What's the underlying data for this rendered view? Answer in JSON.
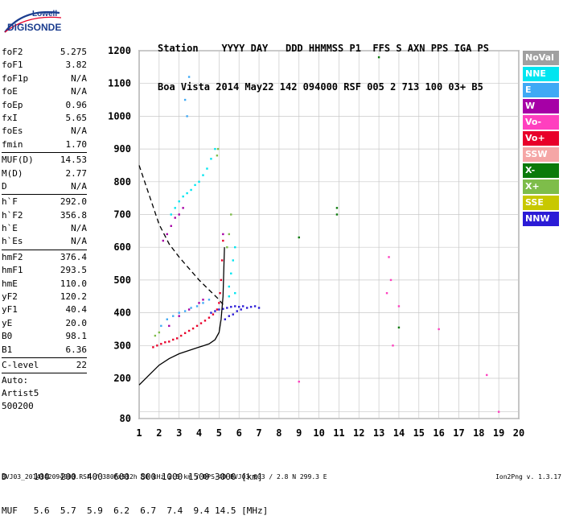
{
  "logo": {
    "line1": "Lowell",
    "line2": "DIGISONDE"
  },
  "header": {
    "row1": [
      "Station",
      "YYYY DAY",
      "DDD",
      "HHMMSS",
      "P1",
      "FFS",
      "S",
      "AXN",
      "PPS",
      "IGA",
      "PS"
    ],
    "row2": [
      "Boa Vista",
      "2014 May22",
      "142",
      "094000",
      "RSF",
      "005",
      "2",
      "713",
      "100",
      "03+",
      "B5"
    ]
  },
  "params": {
    "group1": [
      {
        "name": "foF2",
        "value": "5.275"
      },
      {
        "name": "foF1",
        "value": "3.82"
      },
      {
        "name": "foF1p",
        "value": "N/A"
      },
      {
        "name": "foE",
        "value": "N/A"
      },
      {
        "name": "foEp",
        "value": "0.96"
      },
      {
        "name": "fxI",
        "value": "5.65"
      },
      {
        "name": "foEs",
        "value": "N/A"
      },
      {
        "name": "fmin",
        "value": "1.70"
      }
    ],
    "group2": [
      {
        "name": "MUF(D)",
        "value": "14.53"
      },
      {
        "name": "M(D)",
        "value": "2.77"
      },
      {
        "name": "D",
        "value": "N/A"
      }
    ],
    "group3": [
      {
        "name": "h`F",
        "value": "292.0"
      },
      {
        "name": "h`F2",
        "value": "356.8"
      },
      {
        "name": "h`E",
        "value": "N/A"
      },
      {
        "name": "h`Es",
        "value": "N/A"
      }
    ],
    "group4": [
      {
        "name": "hmF2",
        "value": "376.4"
      },
      {
        "name": "hmF1",
        "value": "293.5"
      },
      {
        "name": "hmE",
        "value": "110.0"
      },
      {
        "name": "yF2",
        "value": "120.2"
      },
      {
        "name": "yF1",
        "value": "40.4"
      },
      {
        "name": "yE",
        "value": "20.0"
      },
      {
        "name": "B0",
        "value": "98.1"
      },
      {
        "name": "B1",
        "value": "6.36"
      }
    ],
    "clevel": {
      "name": "C-level",
      "value": "22"
    },
    "auto_label": "Auto:",
    "artist": "Artist5",
    "code": "500200"
  },
  "legend": [
    {
      "label": "NoVal",
      "color": "#a0a0a0"
    },
    {
      "label": "NNE",
      "color": "#00e5f0"
    },
    {
      "label": "E",
      "color": "#3fa9f5"
    },
    {
      "label": "W",
      "color": "#a600a6"
    },
    {
      "label": "Vo-",
      "color": "#ff3fbf"
    },
    {
      "label": "Vo+",
      "color": "#e8002a"
    },
    {
      "label": "SSW",
      "color": "#f5a6a6"
    },
    {
      "label": "X-",
      "color": "#0a7a0a"
    },
    {
      "label": "X+",
      "color": "#7ebd4a"
    },
    {
      "label": "SSE",
      "color": "#c8c800"
    },
    {
      "label": "NNW",
      "color": "#2b1bd6"
    }
  ],
  "muf_table": {
    "row1": [
      "D",
      "100",
      "200",
      "400",
      "600",
      "800",
      "1000",
      "1500",
      "3000",
      "[km]"
    ],
    "row2": [
      "MUF",
      "5.6",
      "5.7",
      "5.9",
      "6.2",
      "6.7",
      "7.4",
      "9.4",
      "14.5",
      "[MHz]"
    ]
  },
  "footer": {
    "left": "BVJ03_2014142094000.RSF / 380fx512h 50 kHz 2.5 km / DPS-4D BVJ03 003 / 2.8 N 299.3 E",
    "right": "Ion2Png v. 1.3.17"
  },
  "chart_data": {
    "type": "scatter",
    "title": "",
    "xlabel": "",
    "ylabel": "",
    "xlim": [
      1,
      20
    ],
    "ylim": [
      80,
      1200
    ],
    "x_ticks": [
      1,
      2,
      3,
      4,
      5,
      6,
      7,
      8,
      9,
      10,
      11,
      12,
      13,
      14,
      15,
      16,
      17,
      18,
      19,
      20
    ],
    "y_ticks": [
      80,
      100,
      200,
      300,
      400,
      500,
      600,
      700,
      800,
      900,
      1000,
      1100,
      1200
    ],
    "y_tick_labels": [
      "80",
      "",
      "200",
      "300",
      "400",
      "500",
      "600",
      "700",
      "800",
      "900",
      "1000",
      "1100",
      "1200"
    ],
    "grid": true,
    "series": [
      {
        "color": "#e8002a",
        "points": [
          [
            1.7,
            295
          ],
          [
            1.9,
            300
          ],
          [
            2.1,
            305
          ],
          [
            2.3,
            310
          ],
          [
            2.5,
            312
          ],
          [
            2.7,
            318
          ],
          [
            2.9,
            322
          ],
          [
            3.1,
            330
          ],
          [
            3.3,
            338
          ],
          [
            3.5,
            345
          ],
          [
            3.7,
            352
          ],
          [
            3.9,
            360
          ],
          [
            4.1,
            368
          ],
          [
            4.3,
            376
          ],
          [
            4.5,
            385
          ],
          [
            4.7,
            395
          ],
          [
            4.9,
            410
          ],
          [
            5.0,
            430
          ],
          [
            5.05,
            460
          ],
          [
            5.1,
            500
          ],
          [
            5.15,
            560
          ],
          [
            5.2,
            620
          ]
        ]
      },
      {
        "color": "#2b1bd6",
        "points": [
          [
            4.6,
            400
          ],
          [
            4.8,
            405
          ],
          [
            5.0,
            410
          ],
          [
            5.2,
            412
          ],
          [
            5.4,
            415
          ],
          [
            5.6,
            418
          ],
          [
            5.8,
            420
          ],
          [
            6.0,
            418
          ],
          [
            6.2,
            420
          ],
          [
            6.4,
            415
          ],
          [
            6.6,
            418
          ],
          [
            6.8,
            420
          ],
          [
            7.0,
            415
          ],
          [
            5.3,
            380
          ],
          [
            5.5,
            390
          ],
          [
            5.7,
            395
          ],
          [
            5.9,
            405
          ],
          [
            6.1,
            410
          ]
        ]
      },
      {
        "color": "#00e5f0",
        "points": [
          [
            2.6,
            700
          ],
          [
            2.8,
            720
          ],
          [
            3.0,
            740
          ],
          [
            3.2,
            755
          ],
          [
            3.4,
            765
          ],
          [
            3.6,
            775
          ],
          [
            3.8,
            790
          ],
          [
            4.0,
            800
          ],
          [
            4.2,
            820
          ],
          [
            4.4,
            840
          ],
          [
            4.6,
            870
          ],
          [
            4.8,
            900
          ],
          [
            5.5,
            480
          ],
          [
            5.6,
            520
          ],
          [
            5.7,
            560
          ],
          [
            5.8,
            600
          ],
          [
            5.5,
            450
          ],
          [
            5.8,
            460
          ]
        ]
      },
      {
        "color": "#a600a6",
        "points": [
          [
            2.2,
            620
          ],
          [
            2.4,
            640
          ],
          [
            2.6,
            665
          ],
          [
            2.8,
            690
          ],
          [
            3.0,
            700
          ],
          [
            3.2,
            720
          ],
          [
            4.0,
            430
          ],
          [
            4.2,
            440
          ],
          [
            3.5,
            410
          ],
          [
            3.0,
            390
          ],
          [
            2.5,
            360
          ],
          [
            5.2,
            640
          ]
        ]
      },
      {
        "color": "#7ebd4a",
        "points": [
          [
            1.8,
            330
          ],
          [
            2.0,
            340
          ],
          [
            5.5,
            640
          ],
          [
            5.6,
            700
          ],
          [
            5.4,
            600
          ],
          [
            4.9,
            880
          ],
          [
            4.95,
            900
          ]
        ]
      },
      {
        "color": "#3fa9f5",
        "points": [
          [
            2.1,
            360
          ],
          [
            2.4,
            380
          ],
          [
            2.7,
            390
          ],
          [
            3.0,
            400
          ],
          [
            3.3,
            405
          ],
          [
            3.6,
            415
          ],
          [
            3.9,
            420
          ],
          [
            4.2,
            430
          ],
          [
            4.5,
            440
          ],
          [
            3.3,
            1050
          ],
          [
            3.5,
            1120
          ],
          [
            3.4,
            1000
          ]
        ]
      },
      {
        "color": "#ff3fbf",
        "points": [
          [
            13.5,
            570
          ],
          [
            13.6,
            500
          ],
          [
            13.4,
            460
          ],
          [
            13.7,
            300
          ],
          [
            14.0,
            420
          ],
          [
            16.0,
            350
          ],
          [
            18.4,
            210
          ],
          [
            19.0,
            100
          ],
          [
            9.0,
            190
          ]
        ]
      },
      {
        "color": "#0a7a0a",
        "points": [
          [
            10.9,
            720
          ],
          [
            10.9,
            700
          ],
          [
            9.0,
            630
          ],
          [
            14.0,
            355
          ],
          [
            13.0,
            1180
          ]
        ]
      }
    ],
    "curves": [
      {
        "name": "",
        "style": "solid",
        "points": [
          [
            1.0,
            180
          ],
          [
            1.5,
            210
          ],
          [
            2.0,
            240
          ],
          [
            2.5,
            260
          ],
          [
            3.0,
            275
          ],
          [
            3.5,
            285
          ],
          [
            4.0,
            295
          ],
          [
            4.5,
            305
          ],
          [
            4.8,
            318
          ],
          [
            5.0,
            340
          ],
          [
            5.1,
            380
          ],
          [
            5.2,
            450
          ],
          [
            5.25,
            560
          ],
          [
            5.27,
            600
          ]
        ]
      },
      {
        "name": "",
        "style": "dashed",
        "points": [
          [
            1.0,
            850
          ],
          [
            1.5,
            760
          ],
          [
            2.0,
            670
          ],
          [
            2.5,
            610
          ],
          [
            3.0,
            570
          ],
          [
            3.5,
            535
          ],
          [
            4.0,
            500
          ],
          [
            4.5,
            470
          ],
          [
            5.0,
            440
          ],
          [
            5.2,
            425
          ]
        ]
      }
    ]
  }
}
